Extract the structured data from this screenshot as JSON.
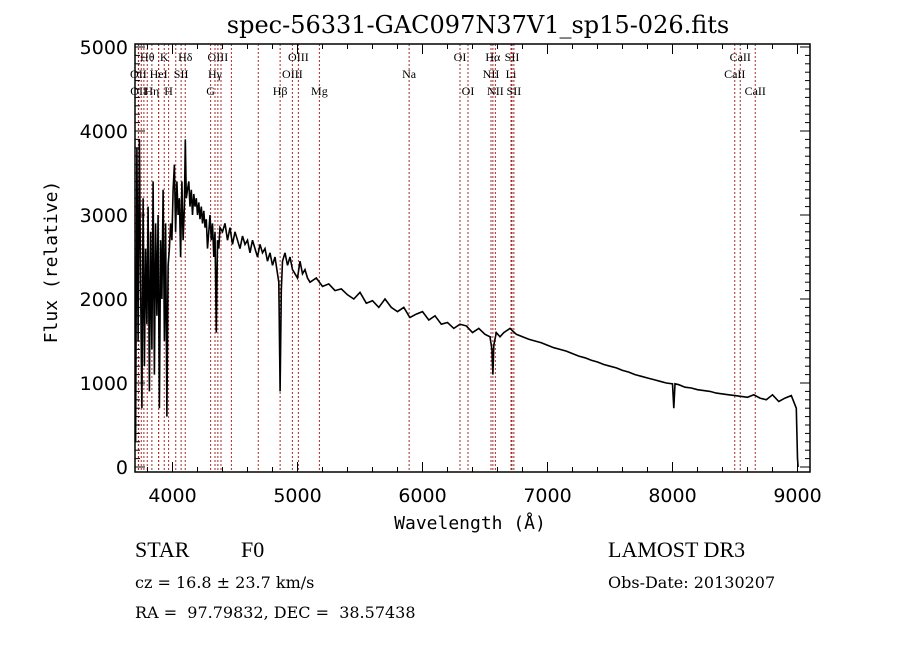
{
  "chart_data": {
    "type": "line",
    "title": "spec-56331-GAC097N37V1_sp15-026.fits",
    "xlabel": "Wavelength (Å)",
    "ylabel": "Flux (relative)",
    "xlim": [
      3700,
      9100
    ],
    "ylim": [
      0,
      5000
    ],
    "xticks": [
      4000,
      5000,
      6000,
      7000,
      8000,
      9000
    ],
    "xtick_labels": [
      "4000",
      "5000",
      "6000",
      "7000",
      "8000",
      "9000"
    ],
    "yticks": [
      0,
      1000,
      2000,
      3000,
      4000,
      5000
    ],
    "ytick_labels": [
      "0",
      "1000",
      "2000",
      "3000",
      "4000",
      "5000"
    ],
    "grid": false,
    "series": [
      {
        "name": "spectrum",
        "color": "#000000",
        "x": [
          3705,
          3715,
          3725,
          3735,
          3745,
          3755,
          3765,
          3775,
          3785,
          3795,
          3805,
          3815,
          3825,
          3835,
          3845,
          3855,
          3865,
          3875,
          3885,
          3895,
          3905,
          3915,
          3925,
          3935,
          3945,
          3955,
          3965,
          3975,
          3985,
          3995,
          4005,
          4015,
          4025,
          4035,
          4045,
          4055,
          4065,
          4075,
          4085,
          4095,
          4102,
          4110,
          4120,
          4130,
          4140,
          4150,
          4160,
          4170,
          4180,
          4190,
          4200,
          4210,
          4220,
          4230,
          4240,
          4250,
          4260,
          4270,
          4280,
          4290,
          4300,
          4310,
          4320,
          4330,
          4340,
          4350,
          4360,
          4370,
          4380,
          4400,
          4420,
          4440,
          4460,
          4480,
          4500,
          4520,
          4540,
          4560,
          4580,
          4600,
          4620,
          4640,
          4660,
          4680,
          4700,
          4720,
          4740,
          4760,
          4780,
          4800,
          4820,
          4840,
          4850,
          4861,
          4870,
          4880,
          4900,
          4920,
          4940,
          4960,
          4980,
          5000,
          5020,
          5040,
          5060,
          5080,
          5100,
          5150,
          5200,
          5250,
          5300,
          5350,
          5400,
          5450,
          5500,
          5550,
          5600,
          5650,
          5700,
          5750,
          5800,
          5850,
          5890,
          5900,
          5950,
          6000,
          6050,
          6100,
          6150,
          6200,
          6250,
          6300,
          6350,
          6400,
          6450,
          6500,
          6540,
          6555,
          6563,
          6570,
          6590,
          6620,
          6650,
          6700,
          6750,
          6800,
          6850,
          6900,
          6950,
          7000,
          7050,
          7100,
          7150,
          7200,
          7250,
          7300,
          7350,
          7400,
          7450,
          7500,
          7550,
          7600,
          7650,
          7700,
          7750,
          7800,
          7850,
          7900,
          7950,
          8000,
          8010,
          8020,
          8050,
          8100,
          8150,
          8200,
          8250,
          8300,
          8350,
          8400,
          8450,
          8500,
          8550,
          8600,
          8650,
          8700,
          8750,
          8800,
          8850,
          8900,
          8950,
          8990,
          9000,
          9005
        ],
        "y": [
          300,
          3800,
          1500,
          3900,
          2200,
          700,
          3200,
          1200,
          2600,
          1700,
          3100,
          900,
          2800,
          1400,
          3400,
          1100,
          2900,
          1800,
          3000,
          700,
          2700,
          2000,
          3300,
          1500,
          2900,
          600,
          2400,
          2600,
          2900,
          2700,
          3300,
          3600,
          2800,
          3400,
          3000,
          3200,
          2500,
          3400,
          2700,
          3100,
          3900,
          3200,
          3300,
          3400,
          3100,
          3300,
          3000,
          3250,
          3100,
          3200,
          3000,
          3150,
          2950,
          3100,
          2900,
          3050,
          2850,
          2950,
          2600,
          2800,
          3000,
          2700,
          2900,
          2500,
          2800,
          1600,
          2700,
          2600,
          2850,
          2800,
          2900,
          2700,
          2850,
          2650,
          2800,
          2700,
          2600,
          2750,
          2650,
          2700,
          2550,
          2700,
          2600,
          2500,
          2650,
          2550,
          2600,
          2450,
          2550,
          2400,
          2500,
          2300,
          2200,
          900,
          2100,
          2450,
          2550,
          2400,
          2500,
          2350,
          2300,
          2250,
          2450,
          2300,
          2350,
          2250,
          2200,
          2250,
          2150,
          2180,
          2100,
          2120,
          2050,
          2000,
          2080,
          1950,
          1980,
          1900,
          2000,
          1900,
          1850,
          1900,
          1800,
          1780,
          1820,
          1850,
          1750,
          1800,
          1700,
          1720,
          1650,
          1700,
          1680,
          1600,
          1650,
          1580,
          1550,
          1400,
          1100,
          1450,
          1600,
          1550,
          1600,
          1650,
          1580,
          1550,
          1520,
          1500,
          1480,
          1450,
          1420,
          1400,
          1380,
          1350,
          1320,
          1300,
          1270,
          1250,
          1220,
          1200,
          1180,
          1150,
          1130,
          1100,
          1080,
          1060,
          1040,
          1020,
          1000,
          990,
          700,
          990,
          980,
          950,
          940,
          920,
          910,
          900,
          880,
          870,
          860,
          850,
          840,
          830,
          860,
          820,
          800,
          860,
          780,
          820,
          850,
          700,
          100,
          0
        ]
      }
    ],
    "line_markers": {
      "color": "#a52a2a",
      "style": "dotted",
      "rows": [
        [
          {
            "label": "Hθ",
            "wavelength": 3798
          },
          {
            "label": "K",
            "wavelength": 3934
          },
          {
            "label": "Hδ",
            "wavelength": 4102
          },
          {
            "label": "OIII",
            "wavelength": 4363
          },
          {
            "label": "OIII",
            "wavelength": 5007
          },
          {
            "label": "OI",
            "wavelength": 6300
          },
          {
            "label": "Hα",
            "wavelength": 6563
          },
          {
            "label": "SII",
            "wavelength": 6716
          },
          {
            "label": "CaII",
            "wavelength": 8542
          }
        ],
        [
          {
            "label": "OII",
            "wavelength": 3727
          },
          {
            "label": "HeI",
            "wavelength": 3889
          },
          {
            "label": "SII",
            "wavelength": 4069
          },
          {
            "label": "Hγ",
            "wavelength": 4340
          },
          {
            "label": "OIII",
            "wavelength": 4959
          },
          {
            "label": "Na",
            "wavelength": 5893
          },
          {
            "label": "NII",
            "wavelength": 6548
          },
          {
            "label": "Li",
            "wavelength": 6708
          },
          {
            "label": "CaII",
            "wavelength": 8498
          }
        ],
        [
          {
            "label": "OII",
            "wavelength": 3729
          },
          {
            "label": "Hη",
            "wavelength": 3835
          },
          {
            "label": "H",
            "wavelength": 3969
          },
          {
            "label": "G",
            "wavelength": 4305
          },
          {
            "label": "Hβ",
            "wavelength": 4861
          },
          {
            "label": "Mg",
            "wavelength": 5175
          },
          {
            "label": "OI",
            "wavelength": 6364
          },
          {
            "label": "NII",
            "wavelength": 6583
          },
          {
            "label": "SII",
            "wavelength": 6731
          },
          {
            "label": "CaII",
            "wavelength": 8662
          }
        ]
      ],
      "extra_lines": [
        3750,
        3771,
        3889,
        4026,
        4471,
        4388,
        4686
      ]
    }
  },
  "info": {
    "object_class": "STAR",
    "subclass": "F0",
    "redshift": "cz = 16.8 ± 23.7 km/s",
    "coords": "RA =  97.79832, DEC =  38.57438",
    "survey": "LAMOST DR3",
    "obs_date": "Obs-Date: 20130207"
  }
}
